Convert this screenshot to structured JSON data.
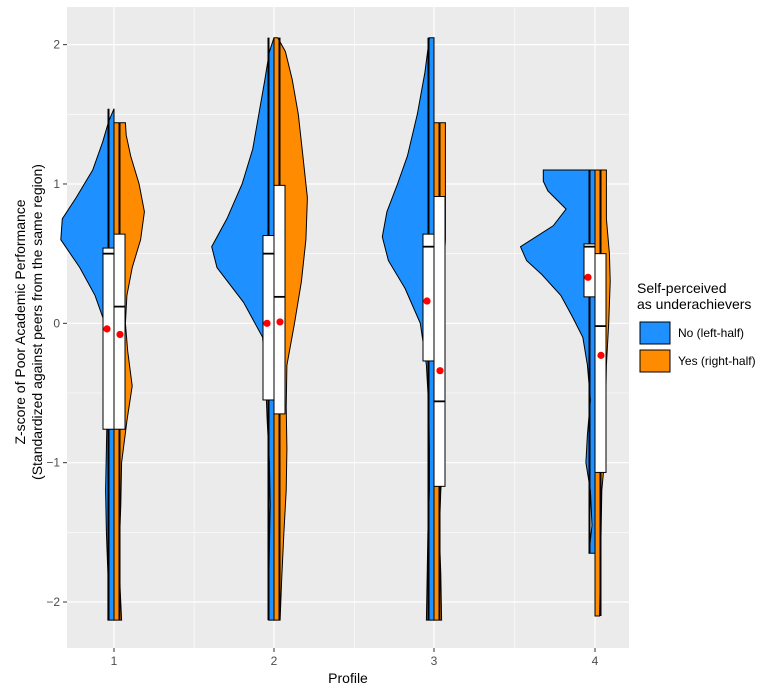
{
  "chart_data": {
    "type": "split-violin with boxplots",
    "xlabel": "Profile",
    "ylabel_line1": "Z-score of Poor Academic Performance",
    "ylabel_line2": "(Standardized against peers from the same region)",
    "categories": [
      "1",
      "2",
      "3",
      "4"
    ],
    "y_ticks": [
      2,
      1,
      0,
      -1,
      -2
    ],
    "y_tick_labels": [
      "2",
      "1",
      "0",
      "−1",
      "−2"
    ],
    "ylim": [
      -2.33,
      2.27
    ],
    "legend": {
      "title_line1": "Self-perceived",
      "title_line2": "as underachievers",
      "entries": [
        {
          "label": "No (left-half)",
          "color": "#1e90ff"
        },
        {
          "label": "Yes (right-half)",
          "color": "#ff8c00"
        }
      ]
    },
    "colors": {
      "no": "#1e90ff",
      "yes": "#ff8c00",
      "mean": "#ff0000",
      "panel": "#ebebeb"
    },
    "series": [
      {
        "profile": 1,
        "group": "No (left-half)",
        "side": "left",
        "density": [
          [
            -2.13,
            0.08
          ],
          [
            -1.8,
            0.08
          ],
          [
            -1.5,
            0.1
          ],
          [
            -1.2,
            0.11
          ],
          [
            -0.9,
            0.1
          ],
          [
            -0.6,
            0.09
          ],
          [
            -0.3,
            0.07
          ],
          [
            -0.15,
            0.07
          ],
          [
            0.0,
            0.12
          ],
          [
            0.2,
            0.25
          ],
          [
            0.4,
            0.45
          ],
          [
            0.6,
            0.7
          ],
          [
            0.75,
            0.68
          ],
          [
            0.9,
            0.5
          ],
          [
            1.1,
            0.28
          ],
          [
            1.3,
            0.15
          ],
          [
            1.45,
            0.07
          ],
          [
            1.54,
            0.0
          ]
        ],
        "box": {
          "q1": -0.76,
          "median": 0.5,
          "q3": 0.54,
          "whisker_low": -2.13,
          "whisker_high": 1.54
        },
        "mean": -0.04
      },
      {
        "profile": 1,
        "group": "Yes (right-half)",
        "side": "right",
        "density": [
          [
            -2.13,
            0.1
          ],
          [
            -1.9,
            0.08
          ],
          [
            -1.6,
            0.07
          ],
          [
            -1.3,
            0.09
          ],
          [
            -1.0,
            0.1
          ],
          [
            -0.7,
            0.17
          ],
          [
            -0.45,
            0.24
          ],
          [
            -0.2,
            0.18
          ],
          [
            0.0,
            0.15
          ],
          [
            0.2,
            0.17
          ],
          [
            0.4,
            0.24
          ],
          [
            0.6,
            0.35
          ],
          [
            0.8,
            0.4
          ],
          [
            1.0,
            0.33
          ],
          [
            1.2,
            0.22
          ],
          [
            1.35,
            0.16
          ],
          [
            1.44,
            0.15
          ]
        ],
        "box": {
          "q1": -0.76,
          "median": 0.12,
          "q3": 0.64,
          "whisker_low": -2.13,
          "whisker_high": 1.44
        },
        "mean": -0.08
      },
      {
        "profile": 2,
        "group": "No (left-half)",
        "side": "left",
        "density": [
          [
            -2.13,
            0.07
          ],
          [
            -1.9,
            0.07
          ],
          [
            -1.6,
            0.06
          ],
          [
            -1.3,
            0.05
          ],
          [
            -1.0,
            0.06
          ],
          [
            -0.7,
            0.09
          ],
          [
            -0.4,
            0.11
          ],
          [
            -0.1,
            0.15
          ],
          [
            0.15,
            0.4
          ],
          [
            0.4,
            0.75
          ],
          [
            0.55,
            0.82
          ],
          [
            0.75,
            0.62
          ],
          [
            1.0,
            0.42
          ],
          [
            1.25,
            0.28
          ],
          [
            1.5,
            0.2
          ],
          [
            1.75,
            0.12
          ],
          [
            1.95,
            0.06
          ],
          [
            2.05,
            0.0
          ]
        ],
        "box": {
          "q1": -0.55,
          "median": 0.5,
          "q3": 0.63,
          "whisker_low": -2.13,
          "whisker_high": 2.05
        },
        "mean": 0.0
      },
      {
        "profile": 2,
        "group": "Yes (right-half)",
        "side": "right",
        "density": [
          [
            -2.13,
            0.08
          ],
          [
            -1.85,
            0.1
          ],
          [
            -1.5,
            0.13
          ],
          [
            -1.2,
            0.16
          ],
          [
            -0.9,
            0.17
          ],
          [
            -0.6,
            0.16
          ],
          [
            -0.3,
            0.17
          ],
          [
            0.0,
            0.27
          ],
          [
            0.3,
            0.36
          ],
          [
            0.6,
            0.42
          ],
          [
            0.9,
            0.44
          ],
          [
            1.2,
            0.38
          ],
          [
            1.5,
            0.32
          ],
          [
            1.75,
            0.24
          ],
          [
            1.95,
            0.15
          ],
          [
            2.05,
            0.05
          ]
        ],
        "box": {
          "q1": -0.65,
          "median": 0.19,
          "q3": 0.99,
          "whisker_low": -2.13,
          "whisker_high": 2.05
        },
        "mean": 0.01
      },
      {
        "profile": 3,
        "group": "No (left-half)",
        "side": "left",
        "density": [
          [
            -2.13,
            0.1
          ],
          [
            -1.8,
            0.09
          ],
          [
            -1.5,
            0.08
          ],
          [
            -1.2,
            0.06
          ],
          [
            -0.9,
            0.06
          ],
          [
            -0.6,
            0.07
          ],
          [
            -0.3,
            0.1
          ],
          [
            0.0,
            0.18
          ],
          [
            0.25,
            0.38
          ],
          [
            0.45,
            0.6
          ],
          [
            0.62,
            0.68
          ],
          [
            0.8,
            0.62
          ],
          [
            1.0,
            0.48
          ],
          [
            1.2,
            0.35
          ],
          [
            1.5,
            0.22
          ],
          [
            1.8,
            0.12
          ],
          [
            2.05,
            0.06
          ]
        ],
        "box": {
          "q1": -0.27,
          "median": 0.55,
          "q3": 0.64,
          "whisker_low": -2.13,
          "whisker_high": 2.05
        },
        "mean": 0.16
      },
      {
        "profile": 3,
        "group": "Yes (right-half)",
        "side": "right",
        "density": [
          [
            -2.13,
            0.1
          ],
          [
            -1.8,
            0.09
          ],
          [
            -1.5,
            0.07
          ],
          [
            -1.2,
            0.09
          ],
          [
            -0.9,
            0.13
          ],
          [
            -0.6,
            0.13
          ],
          [
            -0.3,
            0.1
          ],
          [
            0.0,
            0.1
          ],
          [
            0.3,
            0.12
          ],
          [
            0.6,
            0.15
          ],
          [
            0.9,
            0.15
          ],
          [
            1.2,
            0.15
          ],
          [
            1.44,
            0.15
          ]
        ],
        "box": {
          "q1": -1.17,
          "median": -0.56,
          "q3": 0.91,
          "whisker_low": -2.13,
          "whisker_high": 1.44
        },
        "mean": -0.34
      },
      {
        "profile": 4,
        "group": "No (left-half)",
        "side": "left",
        "density": [
          [
            -1.65,
            0.08
          ],
          [
            -1.45,
            0.04
          ],
          [
            -1.2,
            0.06
          ],
          [
            -1.0,
            0.12
          ],
          [
            -0.8,
            0.1
          ],
          [
            -0.55,
            0.06
          ],
          [
            -0.3,
            0.1
          ],
          [
            -0.1,
            0.16
          ],
          [
            0.05,
            0.3
          ],
          [
            0.2,
            0.45
          ],
          [
            0.35,
            0.7
          ],
          [
            0.45,
            0.9
          ],
          [
            0.55,
            0.98
          ],
          [
            0.7,
            0.55
          ],
          [
            0.82,
            0.38
          ],
          [
            0.95,
            0.62
          ],
          [
            1.02,
            0.68
          ],
          [
            1.1,
            0.68
          ]
        ],
        "box": {
          "q1": 0.19,
          "median": 0.55,
          "q3": 0.57,
          "whisker_low": -1.65,
          "whisker_high": 1.1
        },
        "mean": 0.33
      },
      {
        "profile": 4,
        "group": "Yes (right-half)",
        "side": "right",
        "density": [
          [
            -2.1,
            0.06
          ],
          [
            -1.8,
            0.07
          ],
          [
            -1.5,
            0.08
          ],
          [
            -1.2,
            0.09
          ],
          [
            -0.9,
            0.14
          ],
          [
            -0.6,
            0.14
          ],
          [
            -0.3,
            0.15
          ],
          [
            0.0,
            0.18
          ],
          [
            0.3,
            0.2
          ],
          [
            0.5,
            0.19
          ],
          [
            0.75,
            0.15
          ],
          [
            0.95,
            0.15
          ],
          [
            1.1,
            0.15
          ]
        ],
        "box": {
          "q1": -1.07,
          "median": -0.02,
          "q3": 0.5,
          "whisker_low": -2.1,
          "whisker_high": 1.1
        },
        "mean": -0.23
      }
    ]
  }
}
